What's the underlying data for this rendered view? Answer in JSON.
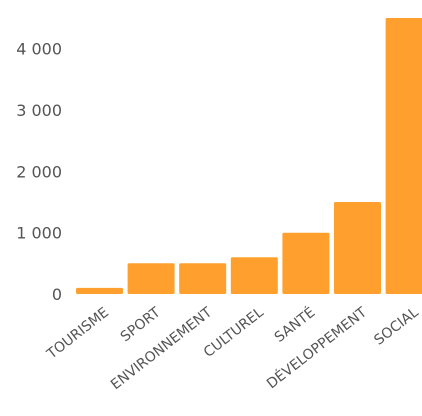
{
  "chart_data": {
    "type": "bar",
    "title": "",
    "xlabel": "",
    "ylabel": "",
    "categories": [
      "TOURISME",
      "SPORT",
      "ENVIRONNEMENT",
      "CULTUREL",
      "SANTÉ",
      "DÉVELOPPEMENT",
      "SOCIAL"
    ],
    "values": [
      100,
      500,
      500,
      600,
      1000,
      1500,
      4500
    ],
    "ylim": [
      0,
      4500
    ],
    "yticks": [
      0,
      1000,
      2000,
      3000,
      4000
    ],
    "ytick_labels": [
      "0",
      "1 000",
      "2 000",
      "3 000",
      "4 000"
    ],
    "bar_color": "#FFA02E",
    "grid": false,
    "legend": "none"
  }
}
